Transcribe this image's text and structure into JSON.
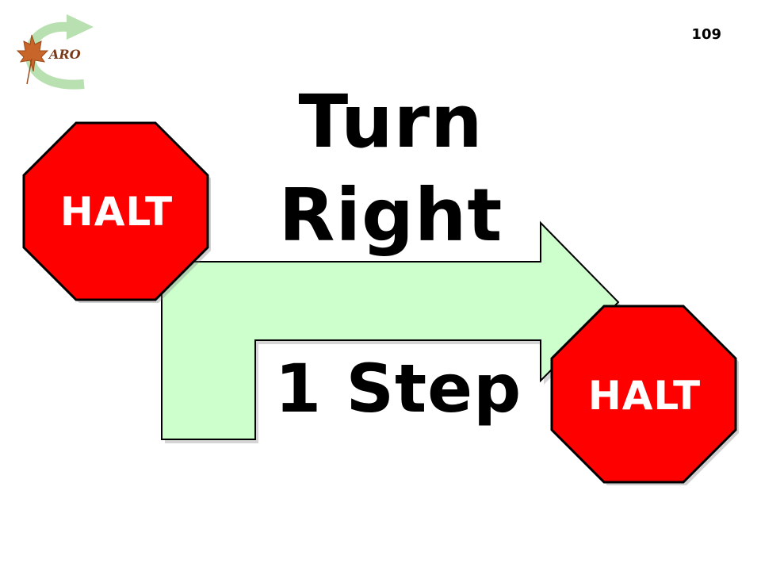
{
  "slide": {
    "page_number": "109",
    "logo_text": "ARO",
    "title_line1": "Turn",
    "title_line2": "Right",
    "step_label": "1 Step",
    "start_sign": "HALT",
    "end_sign": "HALT"
  },
  "colors": {
    "stop_sign_fill": "#ff0000",
    "stop_sign_border": "#000000",
    "arrow_fill": "#ccffcc",
    "arrow_border": "#000000",
    "logo_green": "#a8d8a0",
    "logo_leaf": "#c8652a"
  },
  "icons": {
    "logo": "maple-leaf-with-curved-arrow-logo",
    "arrow": "bent-right-arrow-icon",
    "signs": "stop-sign-octagon-icon"
  }
}
